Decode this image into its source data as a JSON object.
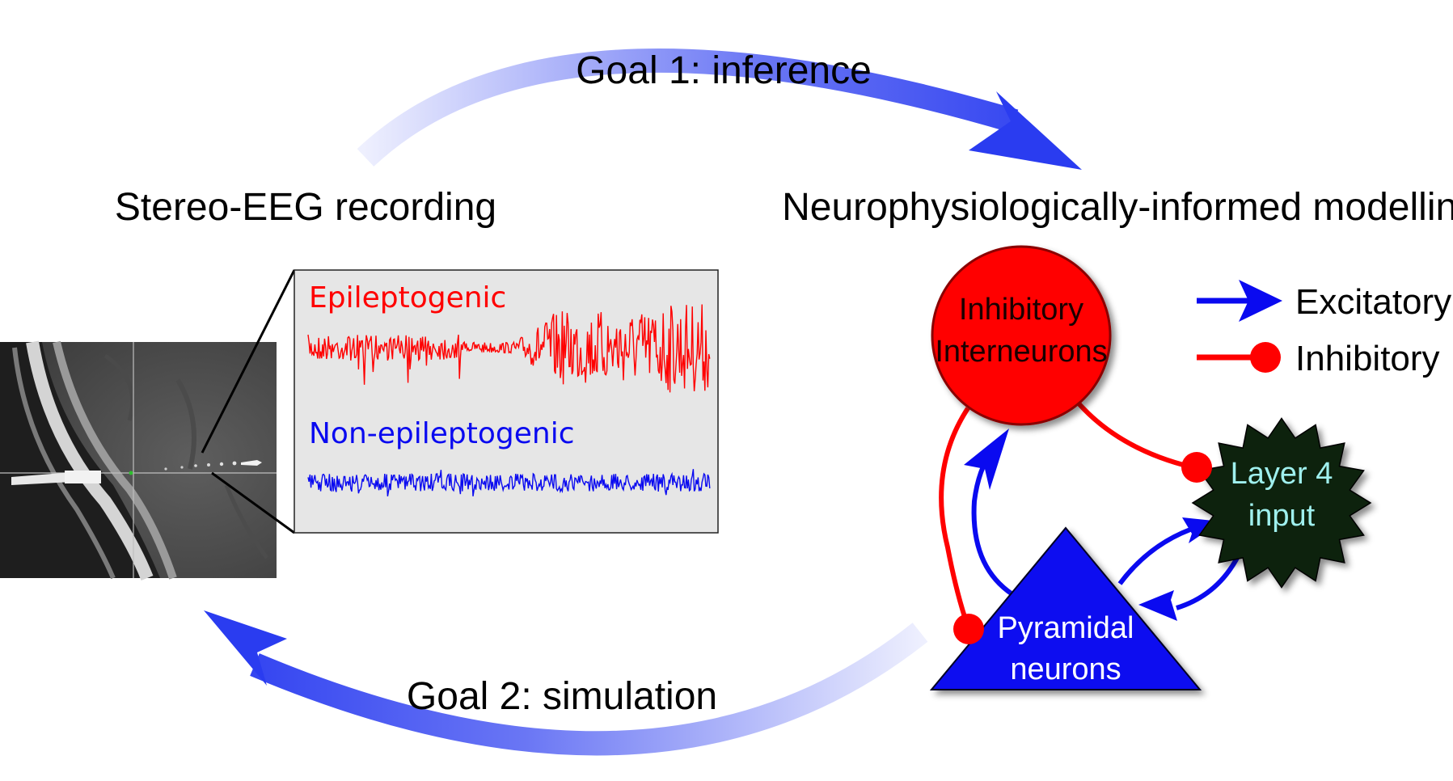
{
  "goals": {
    "inference": "Goal 1: inference",
    "simulation": "Goal 2: simulation"
  },
  "sections": {
    "recording": "Stereo-EEG recording",
    "modelling": "Neurophysiologically-informed modelling"
  },
  "traces": {
    "epileptogenic": "Epileptogenic",
    "non_epileptogenic": "Non-epileptogenic"
  },
  "nodes": {
    "interneurons_line1": "Inhibitory",
    "interneurons_line2": "Interneurons",
    "pyramidal_line1": "Pyramidal",
    "pyramidal_line2": "neurons",
    "layer4_line1": "Layer 4",
    "layer4_line2": "input"
  },
  "legend": {
    "excitatory": "Excitatory",
    "inhibitory": "Inhibitory"
  },
  "colors": {
    "excitatory": "#0a0af0",
    "inhibitory": "#ff0000",
    "goal_arrow": "#2a3cf0",
    "layer4_fill": "#0d2410",
    "layer4_text": "#9ff0ee",
    "trace_panel": "#e6e6e6"
  }
}
